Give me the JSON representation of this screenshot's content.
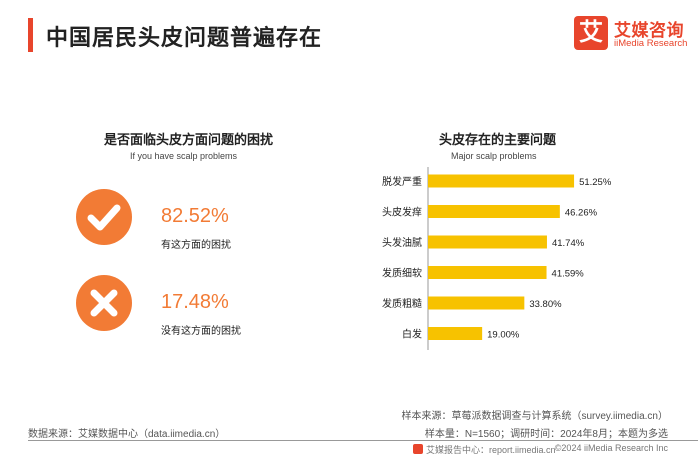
{
  "page": {
    "title": "中国居民头皮问题普遍存在"
  },
  "logo": {
    "mark": "艾",
    "name_cn": "艾媒咨询",
    "name_en": "iiMedia Research",
    "color": "#e8452c"
  },
  "left_panel": {
    "title": "是否面临头皮方面问题的困扰",
    "subtitle": "If you have scalp problems",
    "stats": [
      {
        "icon": "check-icon",
        "value": "82.52%",
        "label": "有这方面的困扰"
      },
      {
        "icon": "cross-icon",
        "value": "17.48%",
        "label": "没有这方面的困扰"
      }
    ],
    "accent": "#f27b35"
  },
  "right_panel": {
    "title": "头皮存在的主要问题",
    "subtitle": "Major scalp problems"
  },
  "chart_data": {
    "type": "bar",
    "orientation": "horizontal",
    "categories": [
      "脱发严重",
      "头皮发痒",
      "头发油腻",
      "发质细软",
      "发质粗糙",
      "白发"
    ],
    "values": [
      51.25,
      46.26,
      41.74,
      41.59,
      33.8,
      19.0
    ],
    "value_labels": [
      "51.25%",
      "46.26%",
      "41.74%",
      "41.59%",
      "33.80%",
      "19.00%"
    ],
    "unit": "%",
    "title": "头皮存在的主要问题",
    "subtitle": "Major scalp problems",
    "bar_color": "#f7c200",
    "grid": false,
    "legend": "none"
  },
  "footer": {
    "source_left": "数据来源：艾媒数据中心（data.iimedia.cn）",
    "sample_source": "样本来源：草莓派数据调查与计算系统（survey.iimedia.cn）",
    "sample_info": "样本量：N=1560；调研时间：2024年8月；本题为多选",
    "report_center": "艾媒报告中心：report.iimedia.cn",
    "copyright": "©2024  iiMedia Research Inc"
  }
}
